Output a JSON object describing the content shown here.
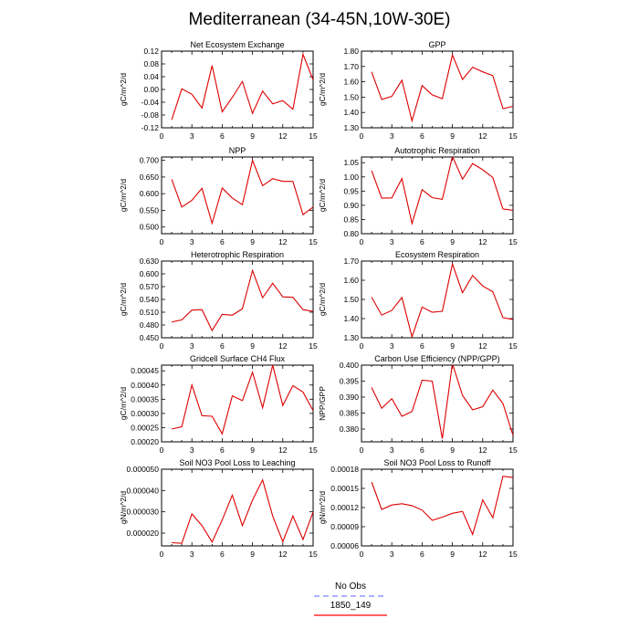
{
  "title": "Mediterranean (34-45N,10W-30E)",
  "legend": [
    {
      "label": "No Obs",
      "color": "#8080ff",
      "dashed": true
    },
    {
      "label": "1850_149",
      "color": "#ff0000",
      "dashed": false
    }
  ],
  "line_color": "#dd0000",
  "chart_data": [
    {
      "type": "line",
      "title": "Net Ecosystem Exchange",
      "ylabel": "gC/m^2/d",
      "xlim": [
        0,
        15
      ],
      "xticks": [
        0,
        3,
        6,
        9,
        12,
        15
      ],
      "ylim": [
        -0.12,
        0.12
      ],
      "yticks": [
        -0.12,
        -0.08,
        -0.04,
        0.0,
        0.04,
        0.08,
        0.12
      ],
      "ytick_labels": [
        "-0.12",
        "-0.08",
        "-0.04",
        "0.00",
        "0.04",
        "0.08",
        "0.12"
      ],
      "x": [
        1,
        2,
        3,
        4,
        5,
        6,
        7,
        8,
        9,
        10,
        11,
        12,
        13,
        14,
        15
      ],
      "y": [
        -0.095,
        0.002,
        -0.015,
        -0.058,
        0.075,
        -0.07,
        -0.025,
        0.025,
        -0.075,
        -0.005,
        -0.045,
        -0.035,
        -0.062,
        0.11,
        0.03
      ]
    },
    {
      "type": "line",
      "title": "GPP",
      "ylabel": "gC/m^2/d",
      "xlim": [
        0,
        15
      ],
      "xticks": [
        0,
        3,
        6,
        9,
        12,
        15
      ],
      "ylim": [
        1.3,
        1.8
      ],
      "yticks": [
        1.3,
        1.4,
        1.5,
        1.6,
        1.7,
        1.8
      ],
      "ytick_labels": [
        "1.30",
        "1.40",
        "1.50",
        "1.60",
        "1.70",
        "1.80"
      ],
      "x": [
        1,
        2,
        3,
        4,
        5,
        6,
        7,
        8,
        9,
        10,
        11,
        12,
        13,
        14,
        15
      ],
      "y": [
        1.665,
        1.485,
        1.505,
        1.61,
        1.345,
        1.575,
        1.515,
        1.49,
        1.775,
        1.615,
        1.695,
        1.665,
        1.64,
        1.425,
        1.44
      ]
    },
    {
      "type": "line",
      "title": "NPP",
      "ylabel": "gC/m^2/d",
      "xlim": [
        0,
        15
      ],
      "xticks": [
        0,
        3,
        6,
        9,
        12,
        15
      ],
      "ylim": [
        0.48,
        0.71
      ],
      "yticks": [
        0.5,
        0.55,
        0.6,
        0.65,
        0.7
      ],
      "ytick_labels": [
        "0.500",
        "0.550",
        "0.600",
        "0.650",
        "0.700"
      ],
      "x": [
        1,
        2,
        3,
        4,
        5,
        6,
        7,
        8,
        9,
        10,
        11,
        12,
        13,
        14,
        15
      ],
      "y": [
        0.643,
        0.56,
        0.58,
        0.616,
        0.511,
        0.617,
        0.587,
        0.567,
        0.7,
        0.624,
        0.645,
        0.637,
        0.637,
        0.537,
        0.56
      ]
    },
    {
      "type": "line",
      "title": "Autotrophic Respiration",
      "ylabel": "gC/m^2/d",
      "xlim": [
        0,
        15
      ],
      "xticks": [
        0,
        3,
        6,
        9,
        12,
        15
      ],
      "ylim": [
        0.8,
        1.07
      ],
      "yticks": [
        0.8,
        0.85,
        0.9,
        0.95,
        1.0,
        1.05
      ],
      "ytick_labels": [
        "0.80",
        "0.85",
        "0.90",
        "0.95",
        "1.00",
        "1.05"
      ],
      "x": [
        1,
        2,
        3,
        4,
        5,
        6,
        7,
        8,
        9,
        10,
        11,
        12,
        13,
        14,
        15
      ],
      "y": [
        1.022,
        0.925,
        0.926,
        0.994,
        0.836,
        0.955,
        0.927,
        0.921,
        1.072,
        0.992,
        1.047,
        1.025,
        0.998,
        0.887,
        0.882
      ]
    },
    {
      "type": "line",
      "title": "Heterotrophic Respiration",
      "ylabel": "gC/m^2/d",
      "xlim": [
        0,
        15
      ],
      "xticks": [
        0,
        3,
        6,
        9,
        12,
        15
      ],
      "ylim": [
        0.45,
        0.63
      ],
      "yticks": [
        0.45,
        0.48,
        0.51,
        0.54,
        0.57,
        0.6,
        0.63
      ],
      "ytick_labels": [
        "0.450",
        "0.480",
        "0.510",
        "0.540",
        "0.570",
        "0.600",
        "0.630"
      ],
      "x": [
        1,
        2,
        3,
        4,
        5,
        6,
        7,
        8,
        9,
        10,
        11,
        12,
        13,
        14,
        15
      ],
      "y": [
        0.487,
        0.492,
        0.515,
        0.516,
        0.467,
        0.505,
        0.503,
        0.518,
        0.608,
        0.544,
        0.578,
        0.546,
        0.545,
        0.516,
        0.512
      ]
    },
    {
      "type": "line",
      "title": "Ecosystem Respiration",
      "ylabel": "gC/m^2/d",
      "xlim": [
        0,
        15
      ],
      "xticks": [
        0,
        3,
        6,
        9,
        12,
        15
      ],
      "ylim": [
        1.3,
        1.7
      ],
      "yticks": [
        1.3,
        1.4,
        1.5,
        1.6,
        1.7
      ],
      "ytick_labels": [
        "1.30",
        "1.40",
        "1.50",
        "1.60",
        "1.70"
      ],
      "x": [
        1,
        2,
        3,
        4,
        5,
        6,
        7,
        8,
        9,
        10,
        11,
        12,
        13,
        14,
        15
      ],
      "y": [
        1.512,
        1.418,
        1.443,
        1.51,
        1.305,
        1.46,
        1.433,
        1.438,
        1.685,
        1.535,
        1.625,
        1.57,
        1.54,
        1.405,
        1.395
      ]
    },
    {
      "type": "line",
      "title": "Gridcell Surface CH4 Flux",
      "ylabel": "gC/m^2/d",
      "xlim": [
        0,
        15
      ],
      "xticks": [
        0,
        3,
        6,
        9,
        12,
        15
      ],
      "ylim": [
        0.0002,
        0.00047
      ],
      "yticks": [
        0.0002,
        0.00025,
        0.0003,
        0.00035,
        0.0004,
        0.00045
      ],
      "ytick_labels": [
        "0.00020",
        "0.00025",
        "0.00030",
        "0.00035",
        "0.00040",
        "0.00045"
      ],
      "x": [
        1,
        2,
        3,
        4,
        5,
        6,
        7,
        8,
        9,
        10,
        11,
        12,
        13,
        14,
        15
      ],
      "y": [
        0.000245,
        0.000253,
        0.0004,
        0.000292,
        0.00029,
        0.000228,
        0.000362,
        0.000345,
        0.000445,
        0.00032,
        0.00047,
        0.000328,
        0.000398,
        0.000375,
        0.00031
      ]
    },
    {
      "type": "line",
      "title": "Carbon Use Efficiency (NPP/GPP)",
      "ylabel": "NPP/GPP",
      "xlim": [
        0,
        15
      ],
      "xticks": [
        0,
        3,
        6,
        9,
        12,
        15
      ],
      "ylim": [
        0.376,
        0.4
      ],
      "yticks": [
        0.38,
        0.385,
        0.39,
        0.395,
        0.4
      ],
      "ytick_labels": [
        "0.380",
        "0.385",
        "0.390",
        "0.395",
        "0.400"
      ],
      "x": [
        1,
        2,
        3,
        4,
        5,
        6,
        7,
        8,
        9,
        10,
        11,
        12,
        13,
        14,
        15
      ],
      "y": [
        0.393,
        0.3865,
        0.3895,
        0.384,
        0.3855,
        0.3953,
        0.395,
        0.377,
        0.4005,
        0.3905,
        0.386,
        0.387,
        0.3922,
        0.388,
        0.378
      ]
    },
    {
      "type": "line",
      "title": "Soil NO3 Pool Loss to Leaching",
      "ylabel": "gN/m^2/d",
      "xlim": [
        0,
        15
      ],
      "xticks": [
        0,
        3,
        6,
        9,
        12,
        15
      ],
      "ylim": [
        1.4e-05,
        5e-05
      ],
      "yticks": [
        2e-05,
        3e-05,
        4e-05,
        5e-05
      ],
      "ytick_labels": [
        "0.000020",
        "0.000030",
        "0.000040",
        "0.000050"
      ],
      "x": [
        1,
        2,
        3,
        4,
        5,
        6,
        7,
        8,
        9,
        10,
        11,
        12,
        13,
        14,
        15
      ],
      "y": [
        1.55e-05,
        1.52e-05,
        2.9e-05,
        2.35e-05,
        1.58e-05,
        2.62e-05,
        3.78e-05,
        2.35e-05,
        3.55e-05,
        4.5e-05,
        2.8e-05,
        1.6e-05,
        2.8e-05,
        1.7e-05,
        3e-05
      ]
    },
    {
      "type": "line",
      "title": "Soil NO3 Pool Loss to Runoff",
      "ylabel": "gN/m^2/d",
      "xlim": [
        0,
        15
      ],
      "xticks": [
        0,
        3,
        6,
        9,
        12,
        15
      ],
      "ylim": [
        6e-05,
        0.00018
      ],
      "yticks": [
        6e-05,
        9e-05,
        0.00012,
        0.00015,
        0.00018
      ],
      "ytick_labels": [
        "0.00006",
        "0.00009",
        "0.00012",
        "0.00015",
        "0.00018"
      ],
      "x": [
        1,
        2,
        3,
        4,
        5,
        6,
        7,
        8,
        9,
        10,
        11,
        12,
        13,
        14,
        15
      ],
      "y": [
        0.00016,
        0.000117,
        0.000124,
        0.000126,
        0.000123,
        0.000116,
        0.0001,
        0.000105,
        0.000111,
        0.000114,
        7.8e-05,
        0.000132,
        0.000104,
        0.000169,
        0.000167
      ]
    }
  ]
}
